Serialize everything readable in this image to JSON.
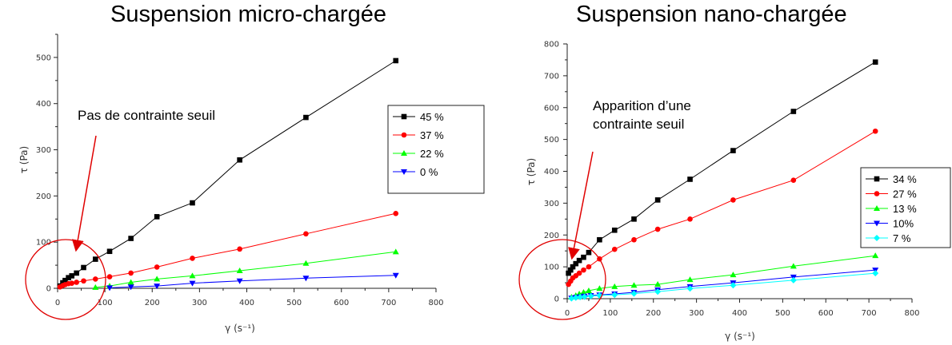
{
  "chart_data": [
    {
      "type": "line",
      "title": "Suspension micro-chargée",
      "xlabel": "γ (s⁻¹)",
      "ylabel": "τ (Pa)",
      "xlim": [
        0,
        800
      ],
      "ylim": [
        0,
        550
      ],
      "xticks": [
        "0",
        "100",
        "200",
        "300",
        "400",
        "500",
        "600",
        "700",
        "800"
      ],
      "yticks": [
        "0",
        "100",
        "200",
        "300",
        "400",
        "500"
      ],
      "legend_position": "right",
      "annotation": [
        "Pas de contrainte seuil"
      ],
      "series": [
        {
          "name": "45 %",
          "color": "#000000",
          "marker": "square",
          "x": [
            5,
            11,
            16,
            23,
            30,
            40,
            55,
            80,
            110,
            155,
            210,
            285,
            385,
            525,
            715
          ],
          "y": [
            5,
            12,
            17,
            23,
            27,
            33,
            45,
            63,
            80,
            108,
            155,
            185,
            278,
            370,
            493
          ]
        },
        {
          "name": "37 %",
          "color": "#ff0000",
          "marker": "circle",
          "x": [
            5,
            11,
            16,
            23,
            30,
            40,
            55,
            80,
            110,
            155,
            210,
            285,
            385,
            525,
            715
          ],
          "y": [
            3,
            6,
            8,
            10,
            11,
            13,
            16,
            20,
            25,
            33,
            46,
            65,
            85,
            118,
            162
          ]
        },
        {
          "name": "22 %",
          "color": "#00ff00",
          "marker": "triangle-up",
          "x": [
            80,
            110,
            155,
            210,
            285,
            385,
            525,
            715
          ],
          "y": [
            2,
            5,
            13,
            20,
            27,
            38,
            54,
            79
          ]
        },
        {
          "name": "0 %",
          "color": "#0000ff",
          "marker": "triangle-down",
          "x": [
            110,
            155,
            210,
            285,
            385,
            525,
            715
          ],
          "y": [
            1,
            3,
            5,
            11,
            16,
            22,
            28
          ]
        }
      ]
    },
    {
      "type": "line",
      "title": "Suspension nano-chargée",
      "xlabel": "γ (s⁻¹)",
      "ylabel": "τ (Pa)",
      "xlim": [
        0,
        800
      ],
      "ylim": [
        0,
        800
      ],
      "xticks": [
        "0",
        "100",
        "200",
        "300",
        "400",
        "500",
        "600",
        "700",
        "800"
      ],
      "yticks": [
        "0",
        "100",
        "200",
        "300",
        "400",
        "500",
        "600",
        "700",
        "800"
      ],
      "legend_position": "right",
      "annotation": [
        "Apparition d’une",
        "contrainte seuil"
      ],
      "series": [
        {
          "name": "34 %",
          "color": "#000000",
          "marker": "square",
          "x": [
            3,
            8,
            13,
            20,
            28,
            38,
            50,
            75,
            110,
            155,
            210,
            285,
            385,
            525,
            715
          ],
          "y": [
            80,
            90,
            100,
            110,
            120,
            130,
            145,
            185,
            215,
            250,
            310,
            375,
            465,
            588,
            743
          ]
        },
        {
          "name": "27 %",
          "color": "#ff0000",
          "marker": "circle",
          "x": [
            3,
            8,
            13,
            20,
            28,
            38,
            50,
            75,
            110,
            155,
            210,
            285,
            385,
            525,
            715
          ],
          "y": [
            45,
            55,
            65,
            72,
            80,
            90,
            100,
            125,
            155,
            185,
            218,
            250,
            310,
            372,
            526
          ]
        },
        {
          "name": "13 %",
          "color": "#00ff00",
          "marker": "triangle-up",
          "x": [
            10,
            20,
            28,
            38,
            50,
            75,
            110,
            155,
            210,
            285,
            385,
            525,
            715
          ],
          "y": [
            5,
            10,
            15,
            20,
            25,
            32,
            38,
            42,
            45,
            60,
            75,
            102,
            135
          ]
        },
        {
          "name": "10%",
          "color": "#0000ff",
          "marker": "triangle-down",
          "x": [
            10,
            20,
            30,
            40,
            55,
            75,
            110,
            155,
            210,
            285,
            385,
            525,
            715
          ],
          "y": [
            2,
            4,
            6,
            8,
            10,
            12,
            15,
            20,
            28,
            38,
            50,
            68,
            90
          ]
        },
        {
          "name": "7 %",
          "color": "#00ffff",
          "marker": "diamond",
          "x": [
            10,
            20,
            30,
            40,
            55,
            75,
            110,
            155,
            210,
            285,
            385,
            525,
            715
          ],
          "y": [
            1,
            3,
            5,
            6,
            8,
            10,
            12,
            16,
            22,
            32,
            42,
            58,
            80
          ]
        }
      ]
    }
  ]
}
